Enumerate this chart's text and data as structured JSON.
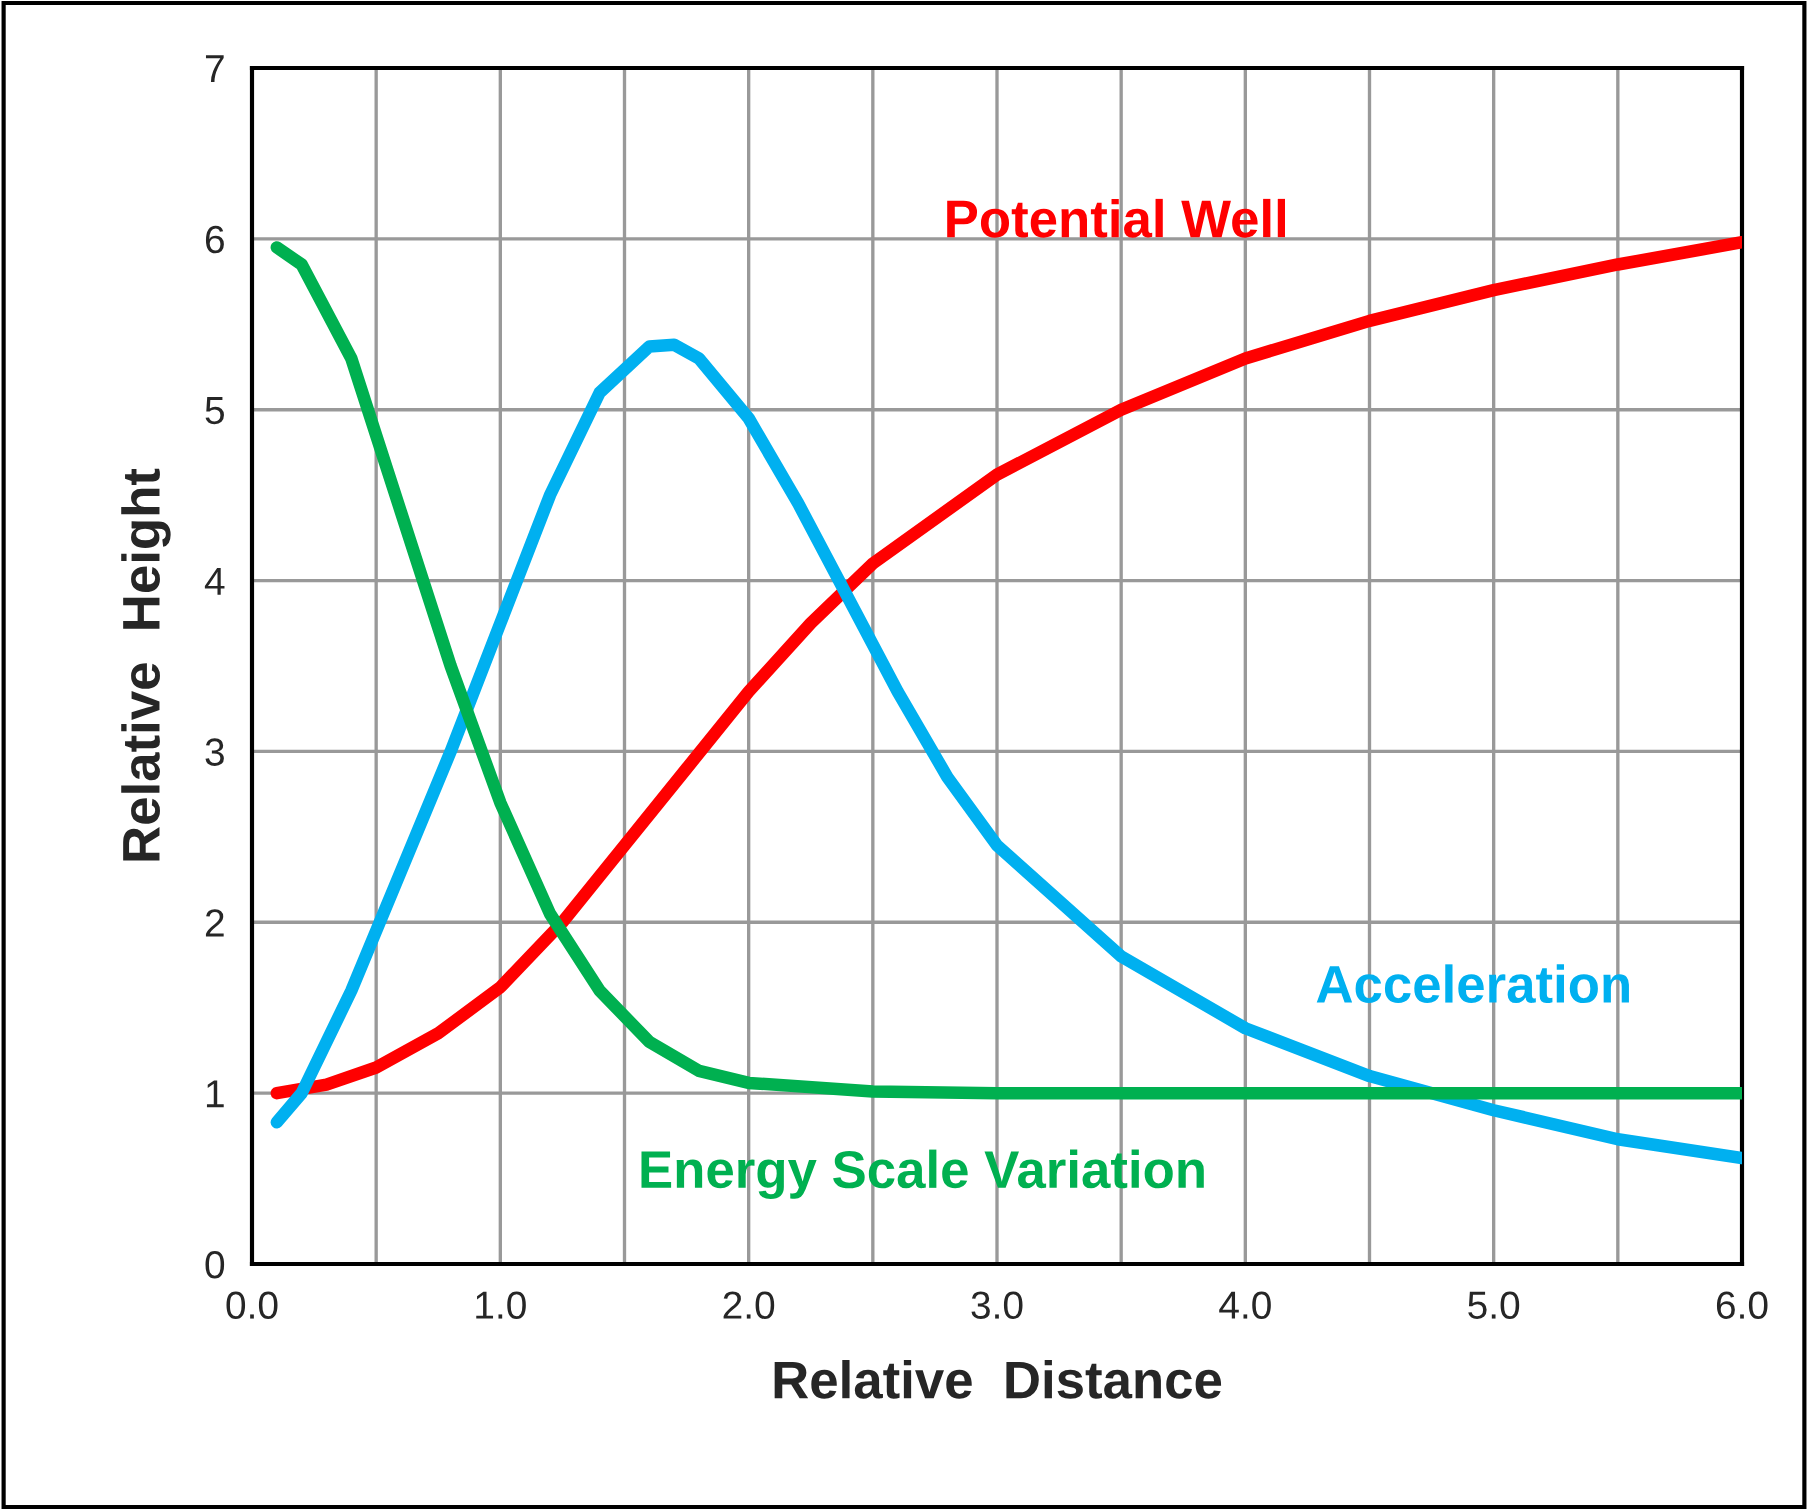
{
  "chart_data": {
    "type": "line",
    "xlabel": "Relative  Distance",
    "ylabel": "Relative  Height",
    "xlim": [
      0,
      6
    ],
    "ylim": [
      0,
      7
    ],
    "xticks": [
      {
        "value": 0,
        "label": "0.0"
      },
      {
        "value": 0.5,
        "label": null
      },
      {
        "value": 1,
        "label": "1.0"
      },
      {
        "value": 1.5,
        "label": null
      },
      {
        "value": 2,
        "label": "2.0"
      },
      {
        "value": 2.5,
        "label": null
      },
      {
        "value": 3,
        "label": "3.0"
      },
      {
        "value": 3.5,
        "label": null
      },
      {
        "value": 4,
        "label": "4.0"
      },
      {
        "value": 4.5,
        "label": null
      },
      {
        "value": 5,
        "label": "5.0"
      },
      {
        "value": 5.5,
        "label": null
      },
      {
        "value": 6,
        "label": "6.0"
      }
    ],
    "yticks": [
      0,
      1,
      2,
      3,
      4,
      5,
      6,
      7
    ],
    "grid": true,
    "legend": false,
    "marker": "none",
    "line_style": "solid",
    "series": [
      {
        "name": "Potential Well",
        "color": "#ff0000",
        "x": [
          0.1,
          0.3,
          0.5,
          0.75,
          1.0,
          1.25,
          1.5,
          1.75,
          2.0,
          2.25,
          2.5,
          3.0,
          3.5,
          4.0,
          4.5,
          5.0,
          5.5,
          6.0
        ],
        "values": [
          1.0,
          1.05,
          1.15,
          1.35,
          1.62,
          2.0,
          2.45,
          2.9,
          3.35,
          3.75,
          4.1,
          4.62,
          5.0,
          5.3,
          5.52,
          5.7,
          5.85,
          5.98
        ]
      },
      {
        "name": "Acceleration",
        "color": "#00b0f0",
        "x": [
          0.1,
          0.2,
          0.4,
          0.6,
          0.8,
          1.0,
          1.2,
          1.4,
          1.6,
          1.7,
          1.8,
          2.0,
          2.2,
          2.4,
          2.6,
          2.8,
          3.0,
          3.5,
          4.0,
          4.5,
          5.0,
          5.5,
          6.0
        ],
        "values": [
          0.83,
          1.0,
          1.6,
          2.3,
          3.0,
          3.75,
          4.5,
          5.1,
          5.37,
          5.38,
          5.3,
          4.95,
          4.45,
          3.9,
          3.35,
          2.85,
          2.45,
          1.8,
          1.38,
          1.1,
          0.9,
          0.73,
          0.62
        ]
      },
      {
        "name": "Energy Scale Variation",
        "color": "#00b050",
        "x": [
          0.1,
          0.2,
          0.4,
          0.6,
          0.8,
          1.0,
          1.2,
          1.4,
          1.6,
          1.8,
          2.0,
          2.5,
          3.0,
          4.0,
          5.0,
          6.0
        ],
        "values": [
          5.95,
          5.85,
          5.3,
          4.4,
          3.5,
          2.7,
          2.05,
          1.6,
          1.3,
          1.13,
          1.06,
          1.01,
          1.0,
          1.0,
          1.0,
          1.0
        ]
      }
    ]
  }
}
